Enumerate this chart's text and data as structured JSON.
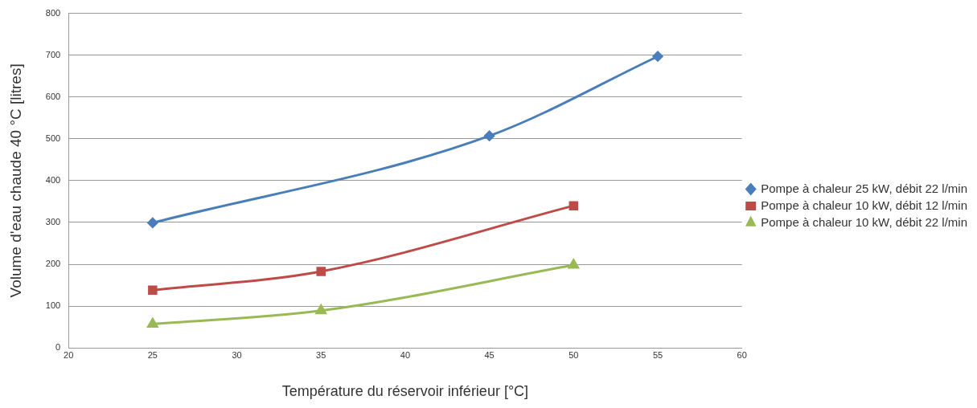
{
  "chart_data": {
    "type": "line",
    "xlabel": "Température du réservoir inférieur [°C]",
    "ylabel": "Volume d'eau chaude 40 °C [litres]",
    "xlim": [
      20,
      60
    ],
    "xticks": [
      20,
      25,
      30,
      35,
      40,
      45,
      50,
      55,
      60
    ],
    "ylim": [
      0,
      800
    ],
    "yticks": [
      0,
      100,
      200,
      300,
      400,
      500,
      600,
      700,
      800
    ],
    "grid": "y",
    "legend": "right",
    "series": [
      {
        "name": "Pompe à chaleur 25 kW, débit 22 l/min",
        "color": "#4a7ebb",
        "marker": "diamond",
        "x": [
          25,
          45,
          55
        ],
        "values": [
          299,
          507,
          697
        ]
      },
      {
        "name": "Pompe à chaleur 10 kW, débit 12 l/min",
        "color": "#be4b48",
        "marker": "square",
        "x": [
          25,
          35,
          50
        ],
        "values": [
          138,
          183,
          340
        ]
      },
      {
        "name": "Pompe à chaleur 10 kW, débit 22 l/min",
        "color": "#98b954",
        "marker": "triangle",
        "x": [
          25,
          35,
          50
        ],
        "values": [
          57,
          89,
          198
        ]
      }
    ]
  }
}
